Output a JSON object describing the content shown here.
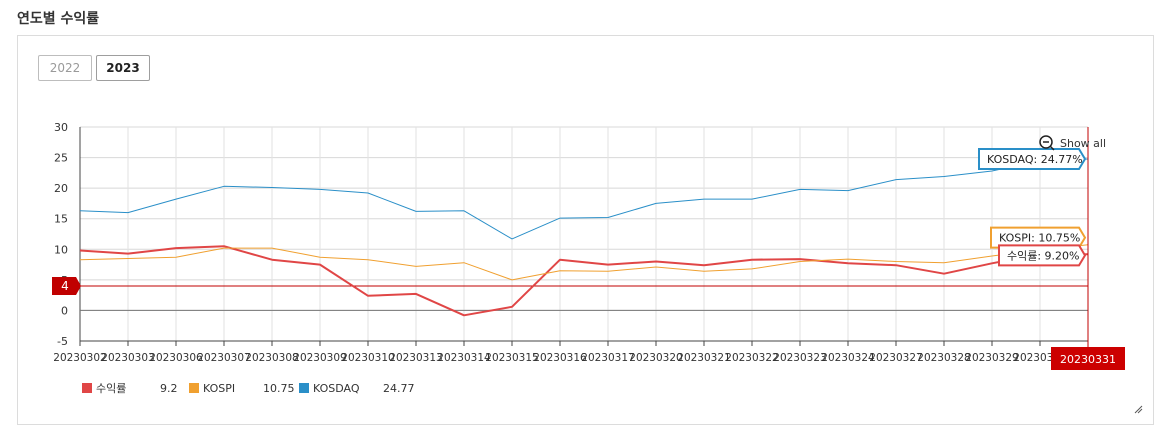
{
  "header": {
    "title": "연도별 수익률"
  },
  "year_tabs": [
    {
      "label": "2022",
      "active": false
    },
    {
      "label": "2023",
      "active": true
    }
  ],
  "zoom": {
    "label": "Show all"
  },
  "reference_line": {
    "label": "4",
    "value": 4,
    "color": "#c00000"
  },
  "crosshair": {
    "label": "20230331"
  },
  "tooltips": {
    "kosdaq": "KOSDAQ: 24.77%",
    "kospi": "KOSPI: 10.75%",
    "return": "수익률: 9.20%"
  },
  "chart_data": {
    "type": "line",
    "x": [
      "20230302",
      "20230303",
      "20230306",
      "20230307",
      "20230308",
      "20230309",
      "20230310",
      "20230313",
      "20230314",
      "20230315",
      "20230316",
      "20230317",
      "20230320",
      "20230321",
      "20230322",
      "20230323",
      "20230324",
      "20230327",
      "20230328",
      "20230329",
      "20230330",
      "20230331"
    ],
    "x_tick_labels": [
      "20230302",
      "20230303",
      "20230306",
      "20230307",
      "20230308",
      "20230309",
      "20230310",
      "20230313",
      "20230314",
      "20230315",
      "20230316",
      "20230317",
      "20230320",
      "20230321",
      "20230322",
      "20230323",
      "20230324",
      "20230327",
      "20230328",
      "20230329",
      "20230330",
      "20230331"
    ],
    "ylim": [
      -5,
      30
    ],
    "yticks": [
      -5,
      0,
      5,
      10,
      15,
      20,
      25,
      30
    ],
    "grid": true,
    "series": [
      {
        "name": "수익률",
        "color": "#e04646",
        "legend_value": "9.2",
        "values": [
          9.8,
          9.3,
          10.2,
          10.5,
          8.3,
          7.5,
          2.4,
          2.7,
          -0.8,
          0.6,
          8.3,
          7.5,
          8.0,
          7.4,
          8.3,
          8.4,
          7.7,
          7.4,
          6.0,
          7.7,
          9.2,
          9.2
        ]
      },
      {
        "name": "KOSPI",
        "color": "#f0a030",
        "legend_value": "10.75",
        "values": [
          8.3,
          8.5,
          8.7,
          10.2,
          10.2,
          8.7,
          8.3,
          7.2,
          7.8,
          5.0,
          6.5,
          6.4,
          7.1,
          6.4,
          6.8,
          8.0,
          8.4,
          8.0,
          7.8,
          8.9,
          9.9,
          10.75
        ]
      },
      {
        "name": "KOSDAQ",
        "color": "#2a8fc8",
        "legend_value": "24.77",
        "values": [
          16.3,
          16.0,
          18.2,
          20.3,
          20.1,
          19.8,
          19.2,
          16.2,
          16.3,
          11.7,
          15.1,
          15.2,
          17.5,
          18.2,
          18.2,
          19.8,
          19.6,
          21.4,
          21.9,
          22.8,
          24.5,
          24.77
        ]
      }
    ]
  }
}
